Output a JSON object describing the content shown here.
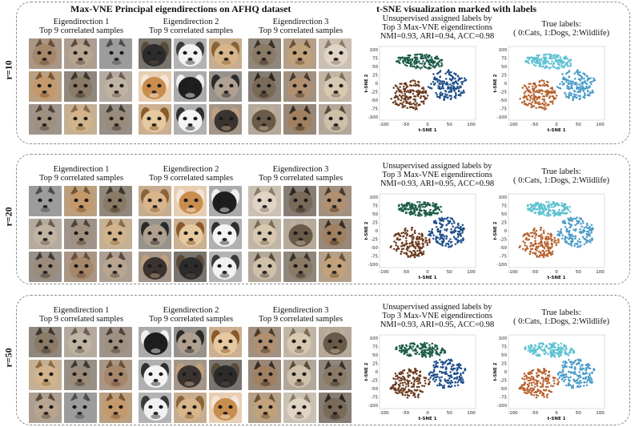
{
  "header": {
    "left": "Max-VNE Principal eigendirections on AFHQ dataset",
    "right": "t-SNE visualization marked with labels"
  },
  "eig_titles": [
    {
      "line1": "Eigendirection 1",
      "line2": "Top 9 correlated samples"
    },
    {
      "line1": "Eigendirection 2",
      "line2": "Top 9 correlated samples"
    },
    {
      "line1": "Eigendirection 3",
      "line2": "Top 9 correlated samples"
    }
  ],
  "rows": [
    {
      "label": "r=10",
      "unsup_title": [
        "Unsupervised assigned labels by",
        "Top 3 Max-VNE eigendirections",
        "NMI=0.93, ARI=0.94, ACC=0.98"
      ],
      "true_title": [
        "True labels:",
        "( 0:Cats, 1:Dogs, 2:Wildlife)"
      ]
    },
    {
      "label": "r=20",
      "unsup_title": [
        "Unsupervised assigned labels by",
        "Top 3 Max-VNE eigendirections",
        "NMI=0.93, ARI=0.95, ACC=0.98"
      ],
      "true_title": [
        "True labels:",
        "( 0:Cats, 1:Dogs, 2:Wildlife)"
      ]
    },
    {
      "label": "r=50",
      "unsup_title": [
        "Unsupervised assigned labels by",
        "Top 3 Max-VNE eigendirections",
        "NMI=0.93, ARI=0.95, ACC=0.98"
      ],
      "true_title": [
        "True labels:",
        "( 0:Cats, 1:Dogs, 2:Wildlife)"
      ]
    }
  ],
  "sample_icons": {
    "direction_1": "cat-face-photo",
    "direction_2": "dog-face-photo",
    "direction_3": "wildlife-face-photo"
  },
  "chart_data": {
    "type": "scatter",
    "xlabel": "t-SNE 1",
    "ylabel": "t-SNE 2",
    "x_ticks": [
      -100,
      -50,
      0,
      50,
      100
    ],
    "y_ticks": [
      100,
      75,
      50,
      25,
      0,
      -25,
      -50,
      -75,
      -100
    ],
    "xlim": [
      -110,
      110
    ],
    "ylim": [
      -110,
      110
    ],
    "unsupervised_colors": {
      "cluster_a": "#1e5c4a",
      "cluster_b": "#6b3a1f",
      "cluster_c": "#1f4f8a"
    },
    "true_label_colors": {
      "0:Cats": "#b8612e",
      "1:Dogs": "#4a9cc9",
      "2:Wildlife": "#5ec2d2"
    },
    "clusters": [
      {
        "name": "top",
        "cx": -15,
        "cy": 65,
        "rx": 55,
        "ry": 22
      },
      {
        "name": "lower-left",
        "cx": -40,
        "cy": -35,
        "rx": 42,
        "ry": 45
      },
      {
        "name": "right",
        "cx": 45,
        "cy": -5,
        "rx": 40,
        "ry": 45
      }
    ]
  }
}
